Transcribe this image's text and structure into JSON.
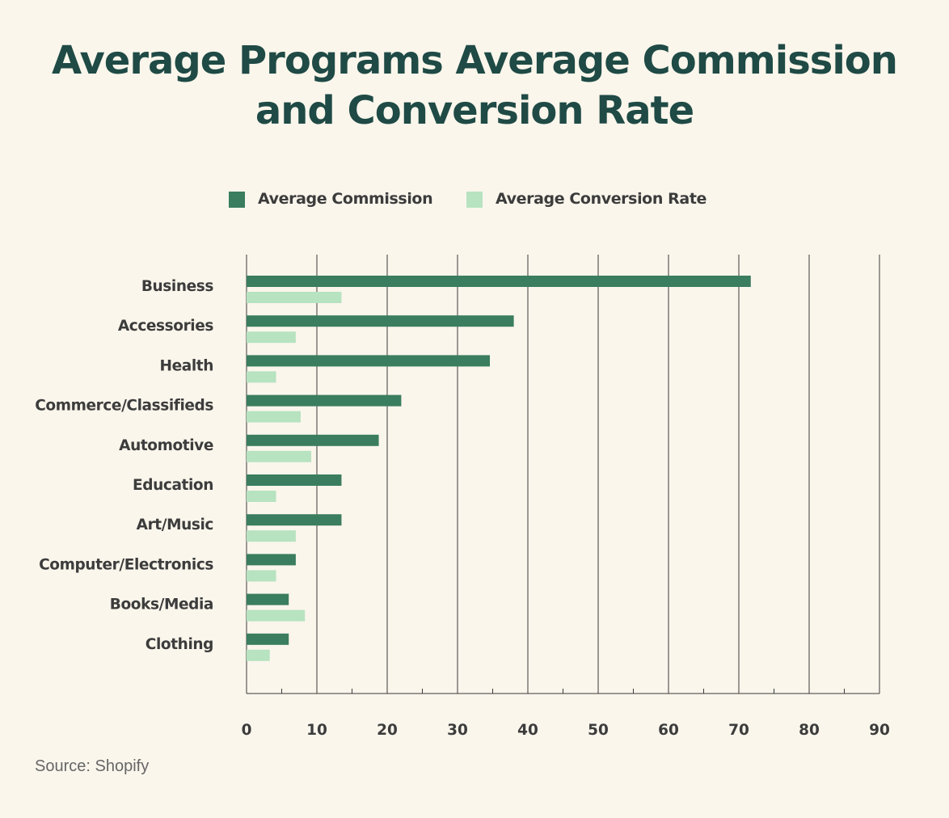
{
  "title": "Average Programs Average Commission and Conversion Rate",
  "source": "Source: Shopify",
  "colors": {
    "background": "#faf6ec",
    "title": "#1f4a45",
    "commission": "#3a7d5f",
    "conversion": "#b7e3c0",
    "grid": "#3a3a3a",
    "text": "#3c3c3c"
  },
  "legend": [
    {
      "label": "Average Commission",
      "color": "#3a7d5f"
    },
    {
      "label": "Average Conversion Rate",
      "color": "#b7e3c0"
    }
  ],
  "chart_data": {
    "type": "bar",
    "orientation": "horizontal",
    "categories": [
      "Business",
      "Accessories",
      "Health",
      "Commerce/Classifieds",
      "Automotive",
      "Education",
      "Art/Music",
      "Computer/Electronics",
      "Books/Media",
      "Clothing"
    ],
    "series": [
      {
        "name": "Average Commission",
        "color": "#3a7d5f",
        "values": [
          71.7,
          38,
          34.6,
          22,
          18.8,
          13.5,
          13.5,
          7,
          6,
          6
        ]
      },
      {
        "name": "Average Conversion Rate",
        "color": "#b7e3c0",
        "values": [
          13.5,
          7,
          4.2,
          7.7,
          9.2,
          4.2,
          7,
          4.2,
          8.3,
          3.3
        ]
      }
    ],
    "xlim": [
      0,
      90
    ],
    "x_ticks": [
      "0",
      "10",
      "20",
      "30",
      "40",
      "50",
      "60",
      "70",
      "80",
      "90"
    ],
    "minor_tick_step": 5,
    "grid": "vertical",
    "legend_position": "top-center"
  }
}
